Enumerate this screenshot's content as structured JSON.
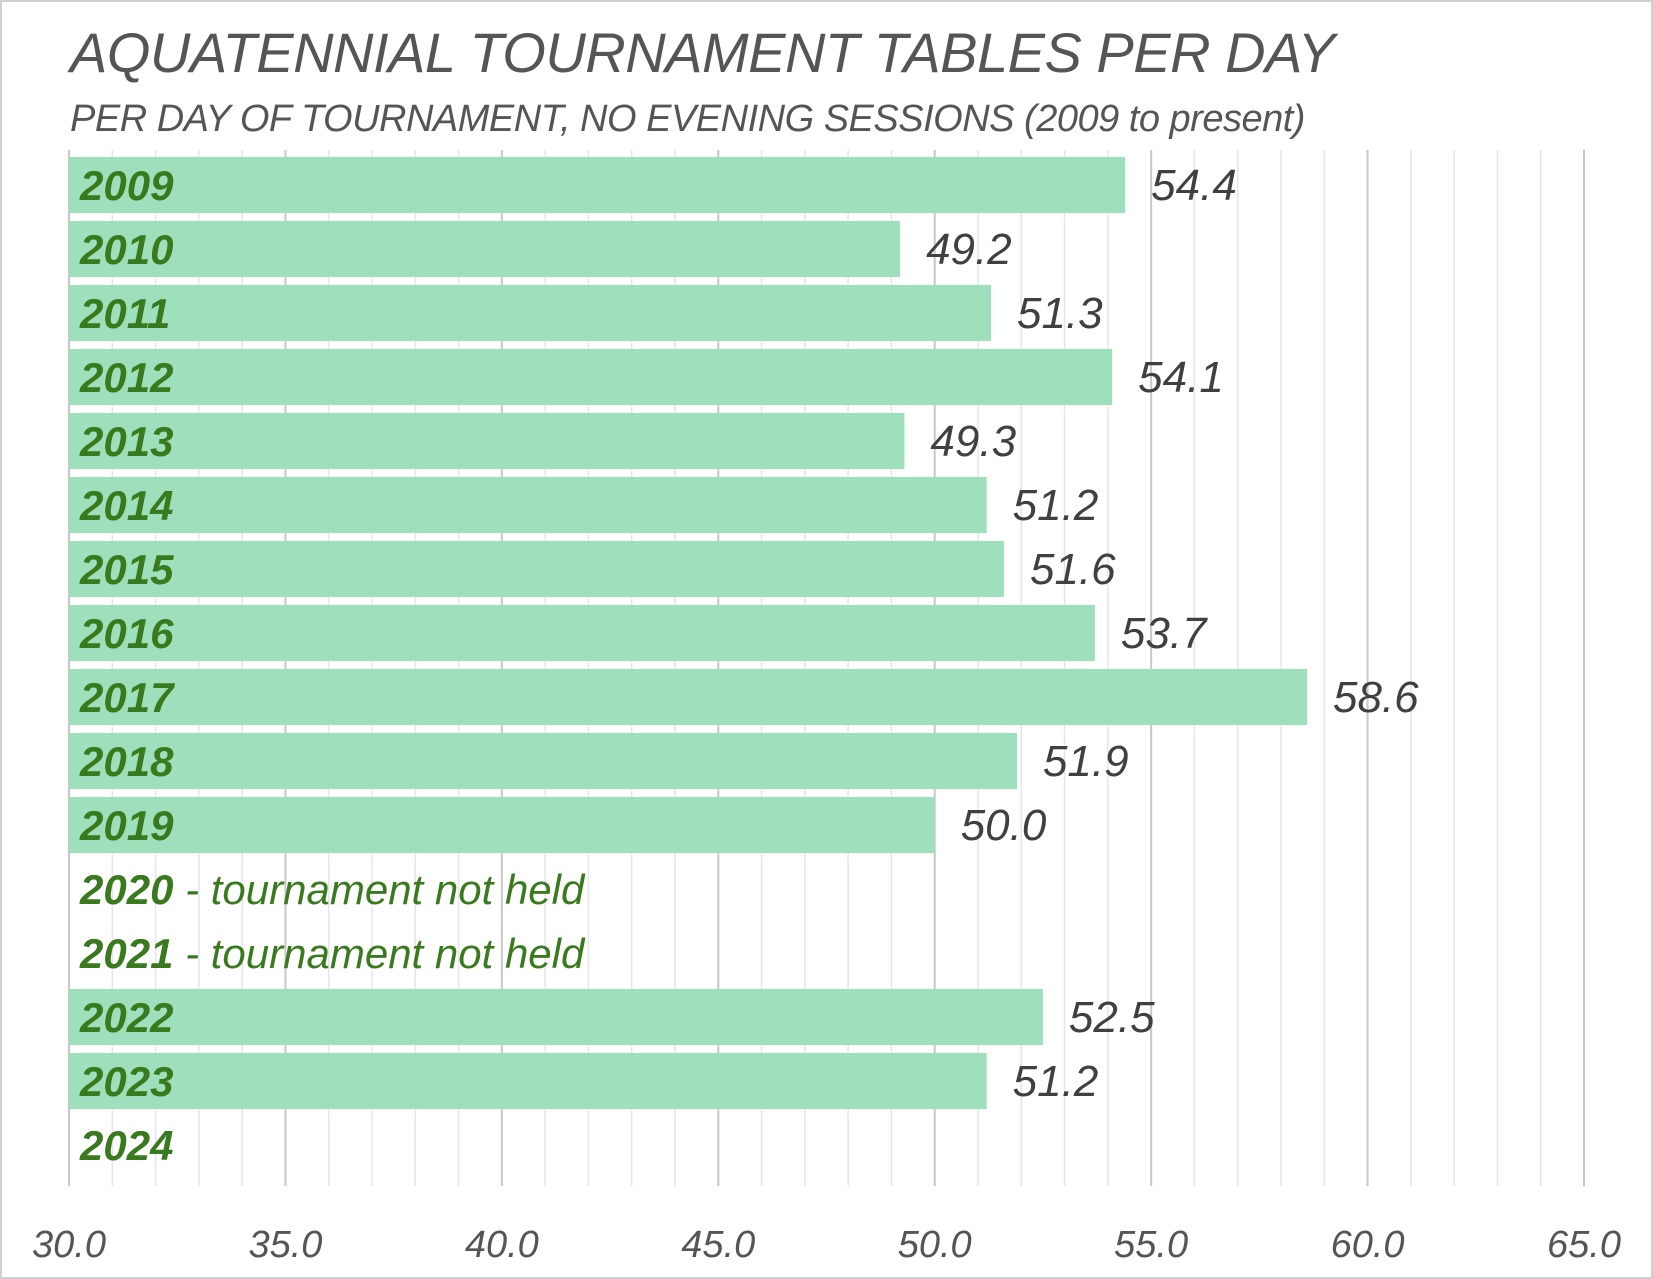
{
  "chart_data": {
    "type": "bar",
    "orientation": "horizontal",
    "title": "AQUATENNIAL TOURNAMENT TABLES PER DAY",
    "subtitle": "PER DAY OF TOURNAMENT, NO EVENING SESSIONS (2009 to present)",
    "xlabel": "",
    "ylabel": "",
    "xlim": [
      30,
      65
    ],
    "xticks": [
      "30.0",
      "35.0",
      "40.0",
      "45.0",
      "50.0",
      "55.0",
      "60.0",
      "65.0"
    ],
    "grid": true,
    "categories": [
      "2009",
      "2010",
      "2011",
      "2012",
      "2013",
      "2014",
      "2015",
      "2016",
      "2017",
      "2018",
      "2019",
      "2020",
      "2021",
      "2022",
      "2023",
      "2024"
    ],
    "values": [
      54.4,
      49.2,
      51.3,
      54.1,
      49.3,
      51.2,
      51.6,
      53.7,
      58.6,
      51.9,
      50.0,
      null,
      null,
      52.5,
      51.2,
      null
    ],
    "value_labels": [
      "54.4",
      "49.2",
      "51.3",
      "54.1",
      "49.3",
      "51.2",
      "51.6",
      "53.7",
      "58.6",
      "51.9",
      "50.0",
      "",
      "",
      "52.5",
      "51.2",
      ""
    ],
    "category_notes": [
      "",
      "",
      "",
      "",
      "",
      "",
      "",
      "",
      "",
      "",
      "",
      " - tournament not held",
      " - tournament not held",
      "",
      "",
      ""
    ],
    "colors": {
      "bar": "#9ee0bb",
      "category_label": "#3a7a1e",
      "value_label": "#404040",
      "grid_major": "#c8c8c8",
      "grid_minor": "#e6e6e6",
      "tick_label": "#555555"
    }
  }
}
